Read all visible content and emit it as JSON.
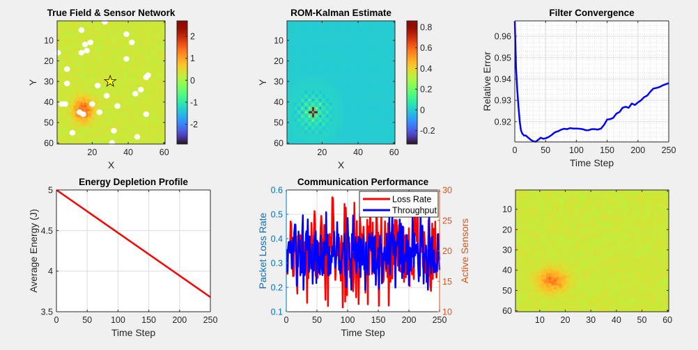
{
  "figure": {
    "background": "#f0f0f0"
  },
  "chart_data": [
    {
      "id": "true-field",
      "type": "heatmap",
      "title": "True Field & Sensor Network",
      "xlabel": "X",
      "ylabel": "Y",
      "xlim": [
        1,
        60
      ],
      "ylim": [
        1,
        60
      ],
      "y_reversed": true,
      "xticks": [
        20,
        40,
        60
      ],
      "yticks": [
        10,
        20,
        30,
        40,
        50,
        60
      ],
      "colormap": "turbo",
      "clim": [
        -2.9,
        2.7
      ],
      "colorbar_ticks": [
        -2,
        -1,
        0,
        1,
        2
      ],
      "background_value": 0.3,
      "hotspot": {
        "x": 15,
        "y": 44,
        "peak": 1.3,
        "radius": 7
      },
      "sensors": [
        [
          27,
          1
        ],
        [
          14,
          5
        ],
        [
          39,
          7
        ],
        [
          16,
          12
        ],
        [
          19,
          11
        ],
        [
          42,
          11
        ],
        [
          1,
          16
        ],
        [
          14,
          16
        ],
        [
          17,
          15
        ],
        [
          39,
          19
        ],
        [
          6,
          24
        ],
        [
          51,
          27
        ],
        [
          50,
          28
        ],
        [
          6,
          31
        ],
        [
          23,
          32
        ],
        [
          47,
          34
        ],
        [
          44,
          36
        ],
        [
          28,
          37
        ],
        [
          3,
          41
        ],
        [
          5,
          41
        ],
        [
          20,
          41
        ],
        [
          34,
          42
        ],
        [
          13,
          45
        ],
        [
          15,
          46
        ],
        [
          24,
          45
        ],
        [
          50,
          46
        ],
        [
          9,
          55
        ],
        [
          32,
          54
        ],
        [
          45,
          57
        ],
        [
          31,
          60
        ]
      ],
      "source_marker": {
        "x": 30,
        "y": 30,
        "symbol": "star",
        "color": "#ffff00"
      }
    },
    {
      "id": "rom-kalman",
      "type": "heatmap",
      "title": "ROM-Kalman Estimate",
      "xlabel": "X",
      "ylabel": "Y",
      "xlim": [
        1,
        60
      ],
      "ylim": [
        1,
        60
      ],
      "y_reversed": true,
      "xticks": [
        20,
        40,
        60
      ],
      "yticks": [
        10,
        20,
        30,
        40,
        50,
        60
      ],
      "colormap": "turbo",
      "clim": [
        -0.33,
        0.86
      ],
      "colorbar_ticks": [
        -0.2,
        0,
        0.2,
        0.4,
        0.6,
        0.8
      ],
      "background_value": 0.0,
      "hotspot": {
        "x": 15,
        "y": 45,
        "peak": 0.86,
        "radius": 12
      }
    },
    {
      "id": "filter-convergence",
      "type": "line",
      "title": "Filter Convergence",
      "xlabel": "Time Step",
      "ylabel": "Relative Error",
      "xlim": [
        0,
        250
      ],
      "ylim": [
        0.9105,
        0.9672
      ],
      "xticks": [
        0,
        50,
        100,
        150,
        200,
        250
      ],
      "yticks": [
        0.92,
        0.93,
        0.94,
        0.95,
        0.96
      ],
      "grid": true,
      "minor_grid": true,
      "series": [
        {
          "name": "Relative Error",
          "color": "#0000ff",
          "x": [
            0,
            2,
            4,
            6,
            8,
            10,
            12,
            15,
            18,
            22,
            26,
            30,
            34,
            38,
            42,
            46,
            50,
            55,
            60,
            65,
            70,
            75,
            80,
            85,
            90,
            95,
            100,
            105,
            110,
            115,
            120,
            125,
            130,
            135,
            140,
            145,
            150,
            155,
            160,
            165,
            170,
            175,
            180,
            185,
            190,
            195,
            200,
            205,
            210,
            215,
            220,
            225,
            230,
            235,
            240,
            245,
            250
          ],
          "y": [
            0.967,
            0.945,
            0.935,
            0.927,
            0.92,
            0.916,
            0.9145,
            0.9135,
            0.9135,
            0.9125,
            0.9115,
            0.9108,
            0.9106,
            0.9115,
            0.9125,
            0.912,
            0.9122,
            0.9128,
            0.9138,
            0.915,
            0.9155,
            0.9162,
            0.9167,
            0.9165,
            0.917,
            0.9168,
            0.9168,
            0.9167,
            0.9165,
            0.916,
            0.916,
            0.9165,
            0.9165,
            0.9163,
            0.9168,
            0.9185,
            0.921,
            0.9212,
            0.9218,
            0.9238,
            0.9245,
            0.9265,
            0.927,
            0.9265,
            0.9285,
            0.9278,
            0.929,
            0.93,
            0.9315,
            0.9322,
            0.934,
            0.9355,
            0.9358,
            0.9362,
            0.937,
            0.9375,
            0.938
          ]
        }
      ]
    },
    {
      "id": "energy-depletion",
      "type": "line",
      "title": "Energy Depletion Profile",
      "xlabel": "Time Step",
      "ylabel": "Average Energy (J)",
      "xlim": [
        0,
        250
      ],
      "ylim": [
        3.5,
        5
      ],
      "xticks": [
        0,
        50,
        100,
        150,
        200,
        250
      ],
      "xtick_labels": [
        "0",
        "50",
        "100",
        "150",
        "200",
        "250"
      ],
      "yticks": [
        3.5,
        4,
        4.5,
        5
      ],
      "ytick_labels": [
        "3.5",
        "4",
        "4.5",
        "5"
      ],
      "grid": true,
      "series": [
        {
          "name": "Average Energy",
          "color": "#ff0000",
          "x": [
            0,
            250
          ],
          "y": [
            5.0,
            3.68
          ]
        }
      ]
    },
    {
      "id": "communication-performance",
      "type": "line",
      "title": "Communication Performance",
      "xlabel": "Time Step",
      "ylabel_left": "Packet Loss Rate",
      "ylabel_right": "Active Sensors",
      "xlim": [
        0,
        250
      ],
      "ylim_left": [
        0.1,
        0.6
      ],
      "ylim_right": [
        10,
        30
      ],
      "xticks": [
        0,
        50,
        100,
        150,
        200,
        250
      ],
      "yticks_left": [
        0.1,
        0.2,
        0.3,
        0.4,
        0.5,
        0.6
      ],
      "ytick_labels_left": [
        "0.1",
        "0.2",
        "0.3",
        "0.4",
        "0.5",
        "0.6"
      ],
      "yticks_right": [
        10,
        15,
        20,
        25,
        30
      ],
      "left_axis_color": "#0072bd",
      "right_axis_color": "#d95319",
      "grid": true,
      "legend": {
        "placement": "top-right",
        "entries": [
          {
            "label": "Loss Rate",
            "color": "#ff0000"
          },
          {
            "label": "Throughput",
            "color": "#0000ff"
          }
        ]
      },
      "series": [
        {
          "name": "Loss Rate",
          "color": "#ff0000",
          "axis": "left",
          "pattern": "noisy",
          "mean": 0.35,
          "range": [
            0.1,
            0.57
          ],
          "n": 250
        },
        {
          "name": "Throughput",
          "color": "#0000ff",
          "axis": "left",
          "pattern": "noisy",
          "mean": 0.34,
          "range": [
            0.19,
            0.53
          ],
          "n": 250
        }
      ]
    },
    {
      "id": "residual-field",
      "type": "heatmap",
      "title": "",
      "xlabel": "",
      "ylabel": "",
      "xlim": [
        1,
        60
      ],
      "ylim": [
        1,
        60
      ],
      "y_reversed": true,
      "xticks": [
        10,
        20,
        30,
        40,
        50,
        60
      ],
      "yticks": [
        10,
        20,
        30,
        40,
        50,
        60
      ],
      "colormap": "turbo",
      "clim": [
        -2.9,
        2.7
      ],
      "background_value": 0.3,
      "hotspot": {
        "x": 15,
        "y": 45,
        "peak": 1.1,
        "radius": 7
      }
    }
  ]
}
